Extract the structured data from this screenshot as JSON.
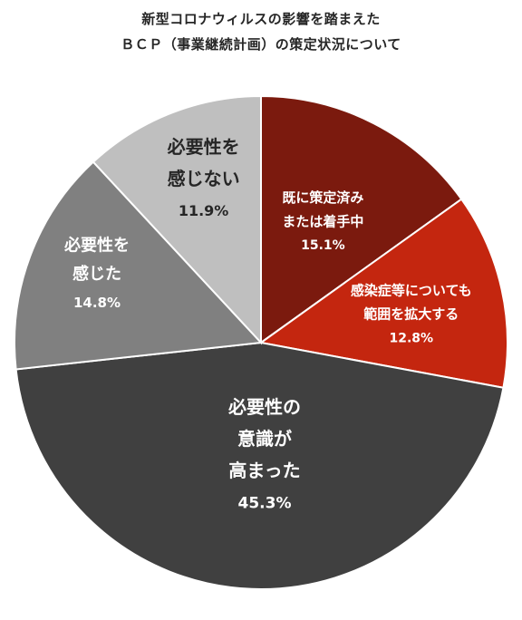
{
  "chart_data": {
    "type": "pie",
    "title_line1": "新型コロナウィルスの影響を踏まえた",
    "title_line2": "ＢＣＰ（事業継続計画）の策定状況について",
    "slices": [
      {
        "label_lines": [
          "既に策定済み",
          "または着手中"
        ],
        "value": 15.1,
        "value_label": "15.1%",
        "color": "#7b1a0e",
        "text_color": "#ffffff"
      },
      {
        "label_lines": [
          "感染症等についても",
          "範囲を拡大する"
        ],
        "value": 12.8,
        "value_label": "12.8%",
        "color": "#c4260f",
        "text_color": "#ffffff"
      },
      {
        "label_lines": [
          "必要性の",
          "意識が",
          "高まった"
        ],
        "value": 45.3,
        "value_label": "45.3%",
        "color": "#404040",
        "text_color": "#ffffff"
      },
      {
        "label_lines": [
          "必要性を",
          "感じた"
        ],
        "value": 14.8,
        "value_label": "14.8%",
        "color": "#808080",
        "text_color": "#ffffff"
      },
      {
        "label_lines": [
          "必要性を",
          "感じない"
        ],
        "value": 11.9,
        "value_label": "11.9%",
        "color": "#bfbfbf",
        "text_color": "#262626"
      }
    ]
  }
}
